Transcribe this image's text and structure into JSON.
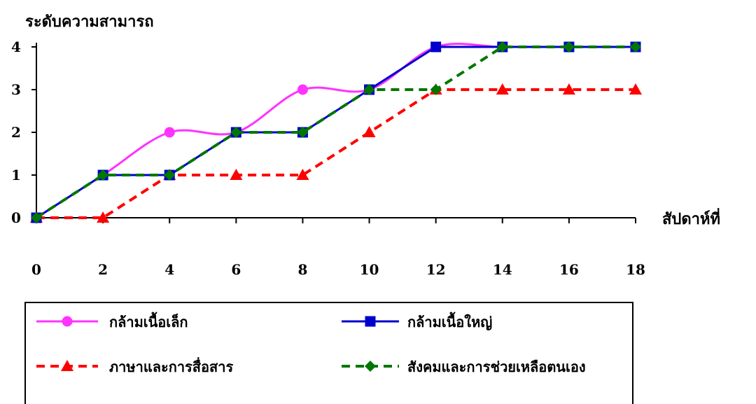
{
  "chart_data": {
    "type": "line",
    "title": "",
    "ylabel": "ระดับความสามารถ",
    "xlabel": "สัปดาห์ที่",
    "x": [
      0,
      2,
      4,
      6,
      8,
      10,
      12,
      14,
      16,
      18
    ],
    "xlim": [
      0,
      18
    ],
    "ylim": [
      0,
      4
    ],
    "xticks": [
      "0",
      "2",
      "4",
      "6",
      "8",
      "10",
      "12",
      "14",
      "16",
      "18"
    ],
    "yticks": [
      "0",
      "1",
      "2",
      "3",
      "4"
    ],
    "grid": false,
    "legend_position": "bottom",
    "series": [
      {
        "name": "กล้ามเนื้อเล็ก",
        "values": [
          0,
          1,
          2,
          2,
          3,
          3,
          4,
          4,
          4,
          4
        ],
        "color": "#ff33ff",
        "dash": "solid",
        "marker": "circle",
        "smooth": true
      },
      {
        "name": "กล้ามเนื้อใหญ่",
        "values": [
          0,
          1,
          1,
          2,
          2,
          3,
          4,
          4,
          4,
          4
        ],
        "color": "#0000cc",
        "dash": "solid",
        "marker": "square",
        "smooth": false
      },
      {
        "name": "ภาษาและการสื่อสาร",
        "values": [
          0,
          0,
          1,
          1,
          1,
          2,
          3,
          3,
          3,
          3
        ],
        "color": "#ff0000",
        "dash": "dotted",
        "marker": "triangle",
        "smooth": false
      },
      {
        "name": "สังคมและการช่วยเหลือตนเอง",
        "values": [
          0,
          1,
          1,
          2,
          2,
          3,
          3,
          4,
          4,
          4
        ],
        "color": "#007700",
        "dash": "dotted",
        "marker": "diamond",
        "smooth": false
      }
    ]
  }
}
